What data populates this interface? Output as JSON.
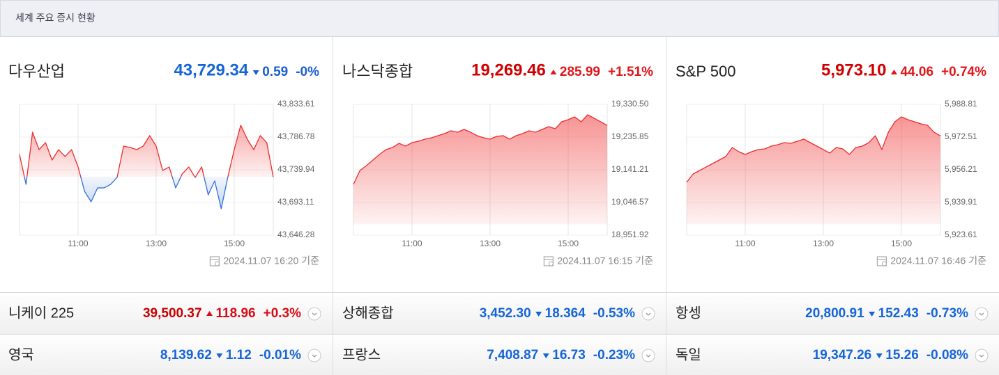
{
  "header": {
    "title": "세계 주요 증시 현황"
  },
  "chart_data": [
    {
      "type": "line",
      "title": "다우산업",
      "price": "43,729.34",
      "change": "0.59",
      "change_rate": "-0%",
      "trend": "down",
      "updated": "2024.11.07 16:20 기준",
      "x": [
        570,
        580,
        590,
        600,
        610,
        620,
        630,
        640,
        650,
        660,
        670,
        680,
        690,
        700,
        710,
        720,
        730,
        740,
        750,
        760,
        770,
        780,
        790,
        800,
        810,
        820,
        830,
        840,
        850,
        860,
        870,
        880,
        890,
        900,
        910,
        920,
        930,
        940,
        950,
        960
      ],
      "values": [
        43761.9,
        43719.0,
        43793.7,
        43768.8,
        43778.8,
        43753.9,
        43768.8,
        43758.9,
        43768.8,
        43743.9,
        43709.0,
        43694.1,
        43714.0,
        43714.0,
        43719.0,
        43729.0,
        43773.8,
        43771.8,
        43768.8,
        43773.8,
        43788.8,
        43773.8,
        43738.9,
        43743.9,
        43714.0,
        43733.9,
        43743.9,
        43729.0,
        43743.9,
        43704.1,
        43724.0,
        43684.1,
        43729.0,
        43768.8,
        43803.7,
        43783.8,
        43768.8,
        43788.8,
        43778.8,
        43729.34
      ],
      "xlim": [
        570,
        960
      ],
      "xticks": [
        {
          "value": 660,
          "label": "11:00"
        },
        {
          "value": 780,
          "label": "13:00"
        },
        {
          "value": 900,
          "label": "15:00"
        }
      ],
      "ylim": [
        43646.28,
        43833.61
      ],
      "yticks": [
        {
          "value": 43833.61,
          "label": "43,833.61"
        },
        {
          "value": 43786.78,
          "label": "43,786.78"
        },
        {
          "value": 43739.94,
          "label": "43,739.94"
        },
        {
          "value": 43693.11,
          "label": "43,693.11"
        },
        {
          "value": 43646.28,
          "label": "43,646.28"
        }
      ],
      "up_color": "#ef2b2b",
      "down_color": "#2f6fd8",
      "grid": true
    },
    {
      "type": "line",
      "title": "나스닥종합",
      "price": "19,269.46",
      "change": "285.99",
      "change_rate": "+1.51%",
      "trend": "up",
      "updated": "2024.11.07 16:15 기준",
      "x": [
        570,
        580,
        590,
        600,
        610,
        620,
        630,
        640,
        650,
        660,
        670,
        680,
        690,
        700,
        710,
        720,
        730,
        740,
        750,
        760,
        770,
        780,
        790,
        800,
        810,
        820,
        830,
        840,
        850,
        860,
        870,
        880,
        890,
        900,
        910,
        920,
        930,
        940,
        950,
        960
      ],
      "values": [
        19098.9,
        19139.2,
        19153.3,
        19169.4,
        19185.5,
        19199.6,
        19205.6,
        19217.7,
        19209.7,
        19219.7,
        19223.8,
        19229.8,
        19233.8,
        19239.9,
        19245.9,
        19254.0,
        19249.9,
        19258.0,
        19249.9,
        19239.9,
        19233.8,
        19229.8,
        19237.9,
        19239.9,
        19229.8,
        19239.9,
        19245.9,
        19254.0,
        19249.9,
        19258.0,
        19266.1,
        19260.0,
        19280.1,
        19286.2,
        19294.2,
        19280.1,
        19300.3,
        19290.2,
        19280.1,
        19269.46
      ],
      "xlim": [
        570,
        960
      ],
      "xticks": [
        {
          "value": 660,
          "label": "11:00"
        },
        {
          "value": 780,
          "label": "13:00"
        },
        {
          "value": 900,
          "label": "15:00"
        }
      ],
      "ylim": [
        18951.92,
        19330.5
      ],
      "yticks": [
        {
          "value": 19330.5,
          "label": "19,330.50"
        },
        {
          "value": 19235.85,
          "label": "19,235.85"
        },
        {
          "value": 19141.21,
          "label": "19,141.21"
        },
        {
          "value": 19046.57,
          "label": "19,046.57"
        },
        {
          "value": 18951.92,
          "label": "18,951.92"
        }
      ],
      "up_color": "#ef2b2b",
      "down_color": "#2f6fd8",
      "grid": true
    },
    {
      "type": "line",
      "title": "S&P 500",
      "price": "5,973.10",
      "change": "44.06",
      "change_rate": "+0.74%",
      "trend": "up",
      "updated": "2024.11.07 16:46 기준",
      "x": [
        570,
        580,
        590,
        600,
        610,
        620,
        630,
        640,
        650,
        660,
        670,
        680,
        690,
        700,
        710,
        720,
        730,
        740,
        750,
        760,
        770,
        780,
        790,
        800,
        810,
        820,
        830,
        840,
        850,
        860,
        870,
        880,
        890,
        900,
        910,
        920,
        930,
        940,
        950,
        960
      ],
      "values": [
        5949.97,
        5954.13,
        5955.86,
        5957.6,
        5959.33,
        5961.07,
        5962.8,
        5967.31,
        5965.23,
        5963.84,
        5965.23,
        5966.27,
        5966.61,
        5968.0,
        5968.7,
        5969.74,
        5969.39,
        5970.43,
        5971.47,
        5969.74,
        5968.0,
        5966.27,
        5964.53,
        5967.31,
        5966.61,
        5963.84,
        5967.31,
        5968.0,
        5969.74,
        5973.2,
        5966.27,
        5974.94,
        5980.14,
        5982.57,
        5981.18,
        5980.14,
        5979.1,
        5978.41,
        5974.94,
        5973.1
      ],
      "xlim": [
        570,
        960
      ],
      "xticks": [
        {
          "value": 660,
          "label": "11:00"
        },
        {
          "value": 780,
          "label": "13:00"
        },
        {
          "value": 900,
          "label": "15:00"
        }
      ],
      "ylim": [
        5923.61,
        5988.81
      ],
      "yticks": [
        {
          "value": 5988.81,
          "label": "5,988.81"
        },
        {
          "value": 5972.51,
          "label": "5,972.51"
        },
        {
          "value": 5956.21,
          "label": "5,956.21"
        },
        {
          "value": 5939.91,
          "label": "5,939.91"
        },
        {
          "value": 5923.61,
          "label": "5,923.61"
        }
      ],
      "up_color": "#ef2b2b",
      "down_color": "#2f6fd8",
      "grid": true
    }
  ],
  "quotes": [
    {
      "name": "니케이 225",
      "price": "39,500.37",
      "change": "118.96",
      "change_rate": "+0.3%",
      "trend": "up"
    },
    {
      "name": "상해종합",
      "price": "3,452.30",
      "change": "18.364",
      "change_rate": "-0.53%",
      "trend": "down"
    },
    {
      "name": "항셍",
      "price": "20,800.91",
      "change": "152.43",
      "change_rate": "-0.73%",
      "trend": "down"
    },
    {
      "name": "영국",
      "price": "8,139.62",
      "change": "1.12",
      "change_rate": "-0.01%",
      "trend": "down"
    },
    {
      "name": "프랑스",
      "price": "7,408.87",
      "change": "16.73",
      "change_rate": "-0.23%",
      "trend": "down"
    },
    {
      "name": "독일",
      "price": "19,347.26",
      "change": "15.26",
      "change_rate": "-0.08%",
      "trend": "down"
    }
  ]
}
